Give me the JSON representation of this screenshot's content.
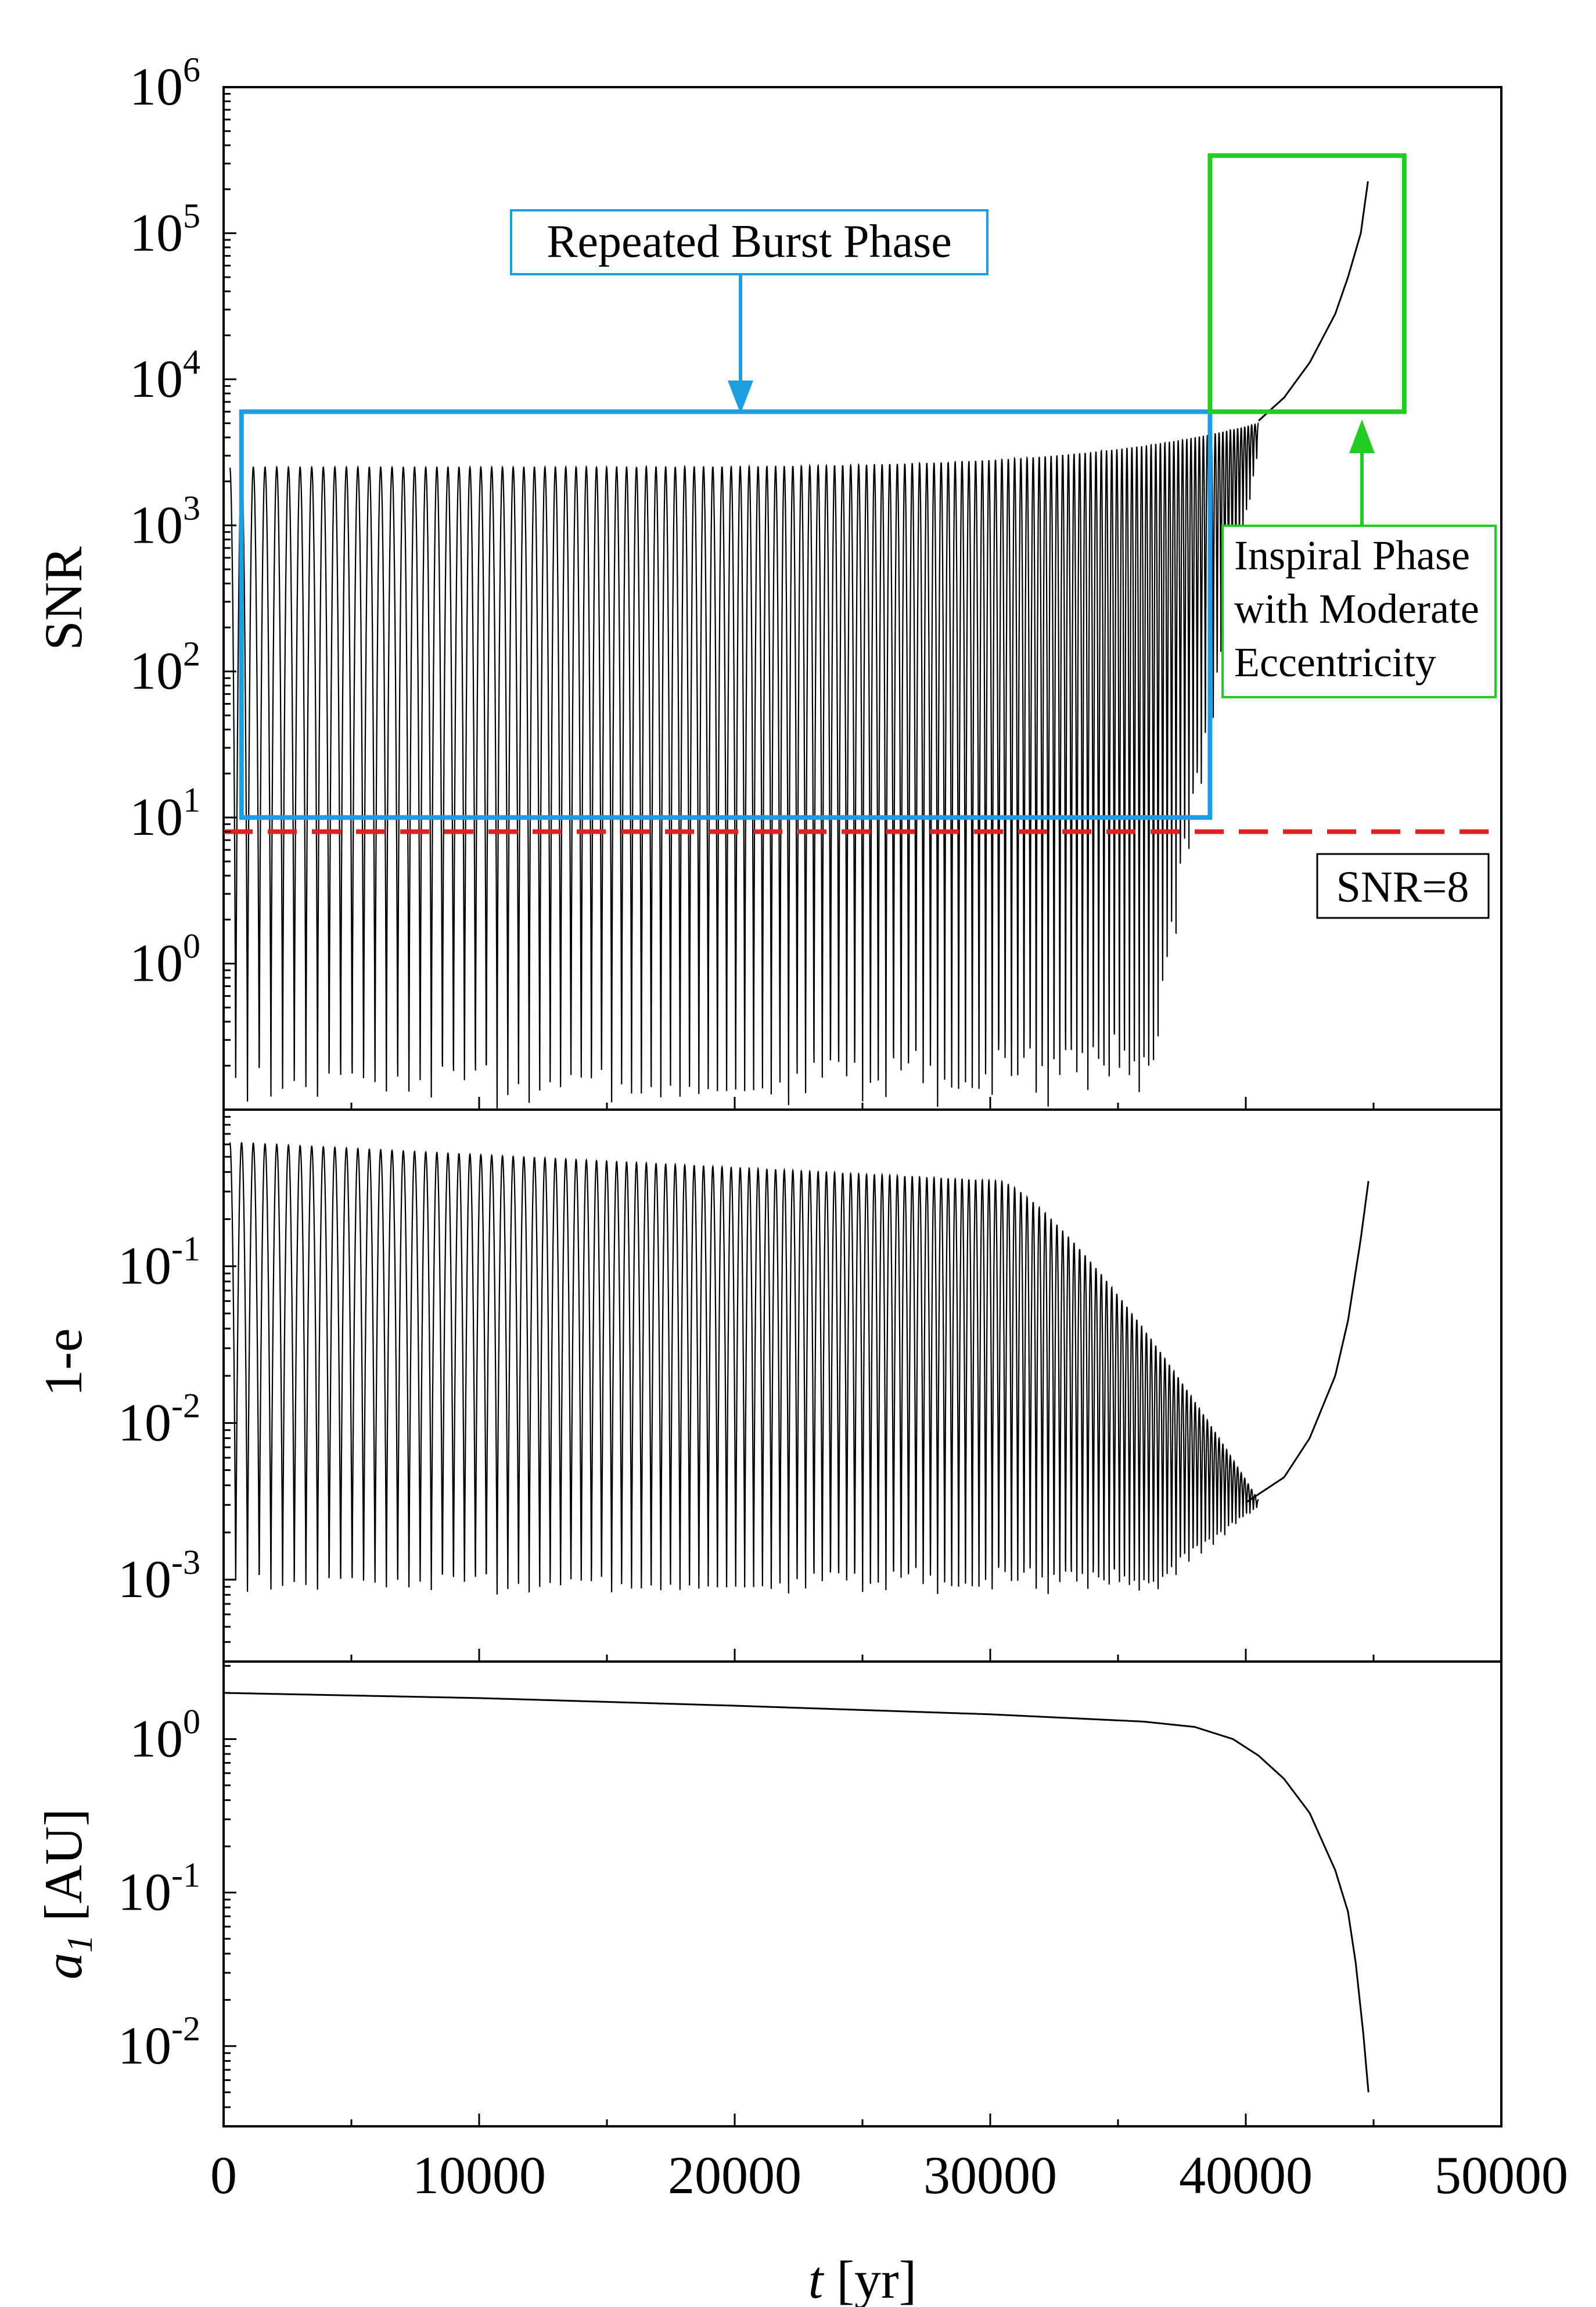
{
  "chart_data": [
    {
      "type": "line",
      "panel": "top",
      "ylabel": "SNR",
      "yscale": "log",
      "ylim": [
        0.1,
        1000000
      ],
      "y_tick_labels": [
        {
          "value": 1,
          "base": "10",
          "exp": "0"
        },
        {
          "value": 10,
          "base": "10",
          "exp": "1"
        },
        {
          "value": 100,
          "base": "10",
          "exp": "2"
        },
        {
          "value": 1000,
          "base": "10",
          "exp": "3"
        },
        {
          "value": 10000,
          "base": "10",
          "exp": "4"
        },
        {
          "value": 100000,
          "base": "10",
          "exp": "5"
        },
        {
          "value": 1000000,
          "base": "10",
          "exp": "6"
        }
      ],
      "series": [
        {
          "name": "SNR",
          "oscillation": {
            "t_start": 250,
            "t_end": 40500,
            "period_start": 460,
            "period_end": 130,
            "peak_start": 2500,
            "peak_end": 5000,
            "trough": 0.1,
            "trough_end": 0.2
          },
          "inspiral": {
            "t": [
              40500,
              41500,
              42500,
              43500,
              44000,
              44500,
              44800
            ],
            "snr": [
              5200,
              7500,
              13000,
              28000,
              50000,
              100000,
              240000
            ]
          }
        }
      ],
      "threshold": {
        "value": 8,
        "label": "SNR=8",
        "color": "#dd2222"
      },
      "annotations": [
        {
          "label": "Repeated Burst Phase",
          "color": "#1e9de0",
          "box_t": [
            700,
            38600
          ],
          "box_snr": [
            10,
            6000
          ]
        },
        {
          "lines": [
            "Inspiral Phase",
            "with Moderate",
            "Eccentricity"
          ],
          "color": "#22cc22",
          "box_t": [
            38600,
            46200
          ],
          "box_snr": [
            6000,
            340000
          ]
        }
      ]
    },
    {
      "type": "line",
      "panel": "middle",
      "ylabel": "1-e",
      "yscale": "log",
      "ylim": [
        0.0003,
        1.0
      ],
      "y_tick_labels": [
        {
          "value": 0.001,
          "base": "10",
          "exp": "-3"
        },
        {
          "value": 0.01,
          "base": "10",
          "exp": "-2"
        },
        {
          "value": 0.1,
          "base": "10",
          "exp": "-1"
        }
      ],
      "series": [
        {
          "name": "1-e",
          "oscillation": {
            "t_start": 250,
            "t_end": 40500,
            "period_start": 460,
            "period_end": 130,
            "max_start": 0.62,
            "max_mid": 0.35,
            "min_start": 0.0008
          },
          "inspiral": {
            "t": [
              40000,
              41500,
              42500,
              43500,
              44000,
              44500,
              44800
            ],
            "one_minus_e": [
              0.0031,
              0.0045,
              0.008,
              0.02,
              0.045,
              0.15,
              0.35
            ]
          }
        }
      ]
    },
    {
      "type": "line",
      "panel": "bottom",
      "ylabel": "a",
      "ylabel_sub": "1",
      "ylabel_unit": " [AU]",
      "yscale": "log",
      "ylim": [
        0.003,
        3.2
      ],
      "y_tick_labels": [
        {
          "value": 0.01,
          "base": "10",
          "exp": "-2"
        },
        {
          "value": 0.1,
          "base": "10",
          "exp": "-1"
        },
        {
          "value": 1,
          "base": "10",
          "exp": "0"
        }
      ],
      "xlabel_var": "t",
      "xlabel_unit": " [yr]",
      "xlim": [
        0,
        50000
      ],
      "x_ticks": [
        0,
        10000,
        20000,
        30000,
        40000,
        50000
      ],
      "series": [
        {
          "name": "a1",
          "t": [
            0,
            10000,
            20000,
            30000,
            36000,
            38000,
            39500,
            40500,
            41500,
            42500,
            43500,
            44000,
            44300,
            44600,
            44800
          ],
          "a": [
            2.0,
            1.85,
            1.65,
            1.45,
            1.3,
            1.2,
            1.0,
            0.78,
            0.55,
            0.33,
            0.14,
            0.075,
            0.035,
            0.012,
            0.005
          ]
        }
      ]
    }
  ]
}
